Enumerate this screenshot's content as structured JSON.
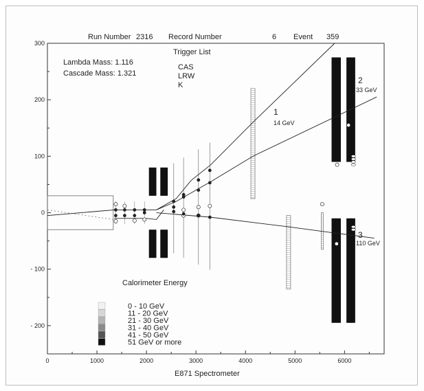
{
  "header": {
    "run_label": "Run Number",
    "run_value": "2316",
    "record_label": "Record Number",
    "record_value": "6",
    "event_label": "Event",
    "event_value": "359"
  },
  "masses": {
    "lambda": "Lambda Mass: 1.116",
    "cascade": "Cascade Mass: 1.321"
  },
  "trigger": {
    "title": "Trigger List",
    "items": [
      "CAS",
      "LRW",
      "K"
    ]
  },
  "tracks": [
    {
      "number": "1",
      "energy": "14 GeV"
    },
    {
      "number": "2",
      "energy": "33 GeV"
    },
    {
      "number": "3",
      "energy": "110 GeV"
    }
  ],
  "calorimeter": {
    "title": "Calorimeter Energy",
    "levels": [
      {
        "label": "0  - 10  GeV",
        "color": "#f2f2f2"
      },
      {
        "label": "11  - 20  GeV",
        "color": "#d6d6d6"
      },
      {
        "label": "21  - 30  GeV",
        "color": "#b4b4b4"
      },
      {
        "label": "31  - 40  GeV",
        "color": "#8a8a8a"
      },
      {
        "label": "41  - 50  GeV",
        "color": "#555555"
      },
      {
        "label": "51 GeV or more",
        "color": "#111111"
      }
    ]
  },
  "axes": {
    "xlabel": "E871 Spectrometer",
    "xlim": [
      0,
      6800
    ],
    "ylim": [
      -250,
      300
    ],
    "xticks": [
      "0",
      "1000",
      "2000",
      "3000",
      "4000",
      "5000",
      "6000"
    ],
    "yticks": [
      "300",
      "200",
      "100",
      "0",
      "- 100",
      "- 200"
    ]
  },
  "tracks_data": {
    "upper_1": [
      [
        2200,
        5
      ],
      [
        2600,
        25
      ],
      [
        2900,
        57
      ],
      [
        3300,
        85
      ],
      [
        4150,
        160
      ],
      [
        5800,
        300
      ]
    ],
    "upper_2": [
      [
        2200,
        5
      ],
      [
        2600,
        20
      ],
      [
        3300,
        55
      ],
      [
        4150,
        100
      ],
      [
        6650,
        205
      ]
    ],
    "lower_3": [
      [
        2200,
        0
      ],
      [
        3300,
        -8
      ],
      [
        4870,
        -25
      ],
      [
        5550,
        -33
      ],
      [
        6600,
        -45
      ]
    ],
    "incoming": [
      [
        0,
        -5
      ],
      [
        1350,
        5
      ],
      [
        2000,
        5
      ],
      [
        2200,
        5
      ]
    ]
  }
}
